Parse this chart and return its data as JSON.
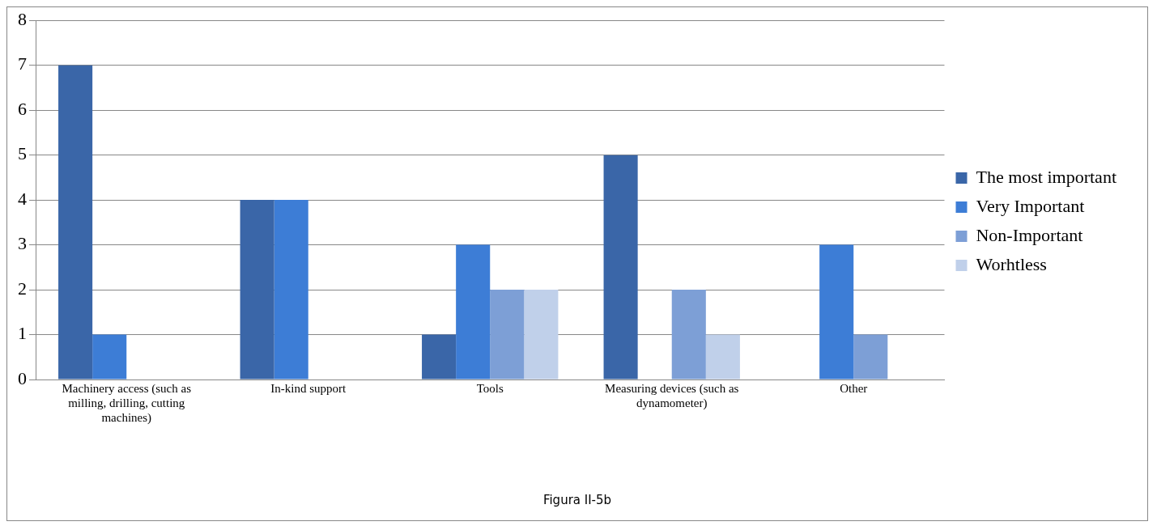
{
  "chart_data": {
    "type": "bar",
    "categories": [
      "Machinery access (such as milling, drilling, cutting machines)",
      "In-kind support",
      "Tools",
      "Measuring devices (such as dynamometer)",
      "Other"
    ],
    "series": [
      {
        "name": "The most important",
        "color": "#3a66a8",
        "values": [
          7,
          4,
          1,
          5,
          0
        ]
      },
      {
        "name": "Very Important",
        "color": "#3d7dd6",
        "values": [
          1,
          4,
          3,
          0,
          3
        ]
      },
      {
        "name": "Non-Important",
        "color": "#7d9fd6",
        "values": [
          0,
          0,
          2,
          2,
          1
        ]
      },
      {
        "name": "Worhtless",
        "color": "#c0d0ea",
        "values": [
          0,
          0,
          2,
          1,
          0
        ]
      }
    ],
    "ylim": [
      0,
      8
    ],
    "yticks": [
      0,
      1,
      2,
      3,
      4,
      5,
      6,
      7,
      8
    ],
    "grid": "y",
    "legend": "right",
    "annotations": [
      "Figura II-5b"
    ]
  }
}
